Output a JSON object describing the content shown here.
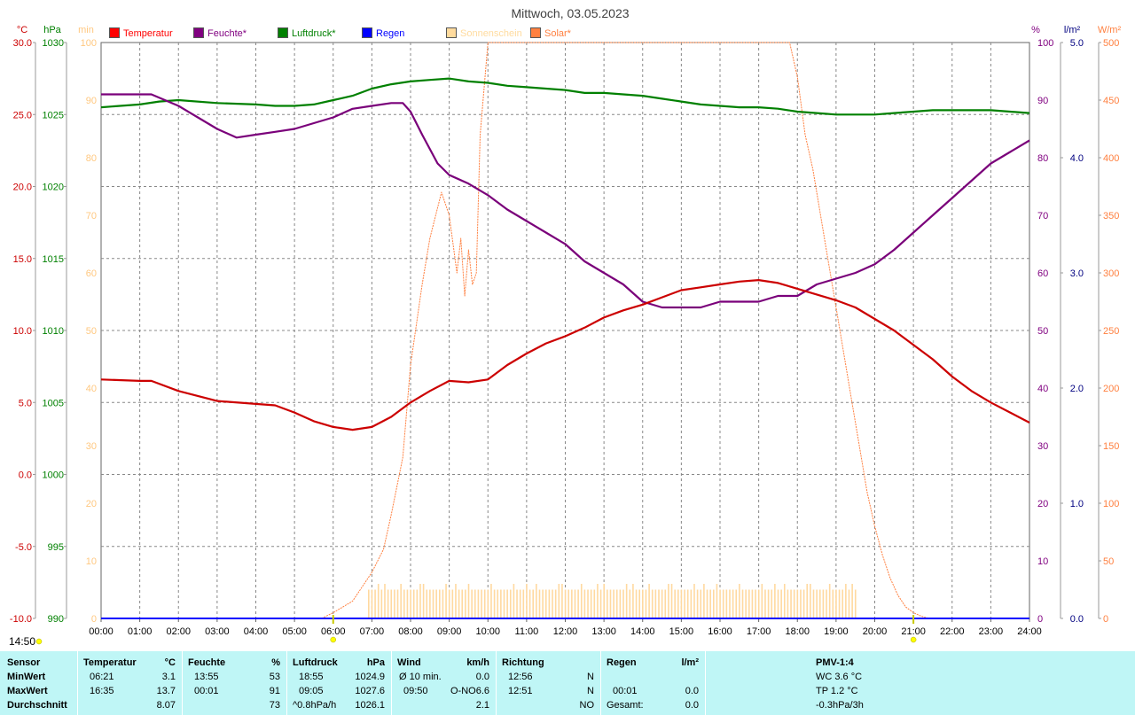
{
  "title": "Mittwoch, 03.05.2023",
  "time_label": "14:50",
  "axis_units": {
    "temp": "°C",
    "pressure": "hPa",
    "minutes": "min",
    "percent": "%",
    "rain": "l/m²",
    "solar": "W/m²"
  },
  "legend": [
    {
      "label": "Temperatur",
      "color": "#ff0000"
    },
    {
      "label": "Feuchte*",
      "color": "#800080"
    },
    {
      "label": "Luftdruck*",
      "color": "#008000"
    },
    {
      "label": "Regen",
      "color": "#0000ff"
    },
    {
      "label": "Sonnenschein",
      "color": "#ffdb9e"
    },
    {
      "label": "Solar*",
      "color": "#ff8040"
    }
  ],
  "colors": {
    "temp": "#cc0000",
    "humidity": "#7a007a",
    "pressure": "#008000",
    "rain": "#0000ff",
    "sunshine": "#ffd9a0",
    "solar": "#ff8040",
    "grid": "#888888",
    "axis_temp": "#cc0000",
    "axis_pressure": "#008000",
    "axis_minutes": "#ffc880",
    "axis_percent": "#800080",
    "axis_rain": "#000080",
    "axis_solar": "#ff8040",
    "summary_bg": "#bff6f6"
  },
  "chart_data": {
    "type": "line",
    "x_range_hours": [
      0,
      24
    ],
    "x_ticks": [
      "00:00",
      "01:00",
      "02:00",
      "03:00",
      "04:00",
      "05:00",
      "06:00",
      "07:00",
      "08:00",
      "09:00",
      "10:00",
      "11:00",
      "12:00",
      "13:00",
      "14:00",
      "15:00",
      "16:00",
      "17:00",
      "18:00",
      "19:00",
      "20:00",
      "21:00",
      "22:00",
      "23:00",
      "24:00"
    ],
    "y_axes": {
      "temp": {
        "range": [
          -10,
          30
        ],
        "ticks": [
          "30.0",
          "25.0",
          "20.0",
          "15.0",
          "10.0",
          "5.0",
          "0.0",
          "-5.0",
          "-10.0"
        ]
      },
      "pressure": {
        "range": [
          990,
          1030
        ],
        "ticks": [
          "1030",
          "1025",
          "1020",
          "1015",
          "1010",
          "1005",
          "1000",
          "995",
          "990"
        ]
      },
      "minutes": {
        "range": [
          0,
          100
        ],
        "ticks": [
          "100",
          "90",
          "80",
          "70",
          "60",
          "50",
          "40",
          "30",
          "20",
          "10",
          "0"
        ]
      },
      "percent": {
        "range": [
          0,
          100
        ],
        "ticks": [
          "100",
          "90",
          "80",
          "70",
          "60",
          "50",
          "40",
          "30",
          "20",
          "10",
          "0"
        ]
      },
      "rain": {
        "range": [
          0,
          5
        ],
        "ticks": [
          "5.0",
          "4.0",
          "3.0",
          "2.0",
          "1.0",
          "0.0"
        ]
      },
      "solar": {
        "range": [
          0,
          500
        ],
        "ticks": [
          "500",
          "450",
          "400",
          "350",
          "300",
          "250",
          "200",
          "150",
          "100",
          "50",
          "0"
        ]
      }
    },
    "grid": true,
    "series": [
      {
        "name": "Temperatur",
        "axis": "temp",
        "x": [
          0,
          1,
          1.3,
          2,
          3,
          4,
          4.5,
          5,
          5.5,
          6,
          6.5,
          7,
          7.5,
          8,
          8.5,
          9,
          9.5,
          10,
          10.5,
          11,
          11.5,
          12,
          12.5,
          13,
          13.5,
          14,
          14.5,
          15,
          15.5,
          16,
          16.5,
          17,
          17.5,
          18,
          18.5,
          19,
          19.5,
          20,
          20.5,
          21,
          21.5,
          22,
          22.5,
          23,
          23.5,
          24
        ],
        "y": [
          6.6,
          6.5,
          6.5,
          5.8,
          5.1,
          4.9,
          4.8,
          4.3,
          3.7,
          3.3,
          3.1,
          3.3,
          4.0,
          5.0,
          5.8,
          6.5,
          6.4,
          6.6,
          7.6,
          8.4,
          9.1,
          9.6,
          10.2,
          10.9,
          11.4,
          11.8,
          12.3,
          12.8,
          13.0,
          13.2,
          13.4,
          13.5,
          13.3,
          12.9,
          12.5,
          12.1,
          11.6,
          10.8,
          10.0,
          9.0,
          8.0,
          6.8,
          5.8,
          5.0,
          4.3,
          3.6
        ]
      },
      {
        "name": "Feuchte*",
        "axis": "percent",
        "x": [
          0,
          1.3,
          2,
          2.5,
          3,
          3.5,
          4,
          4.5,
          5,
          5.5,
          6,
          6.5,
          7,
          7.5,
          7.8,
          8,
          8.3,
          8.7,
          9,
          9.5,
          10,
          10.5,
          11,
          11.5,
          12,
          12.5,
          13,
          13.5,
          14,
          14.5,
          15,
          15.5,
          16,
          16.5,
          17,
          17.5,
          18,
          18.5,
          19,
          19.5,
          20,
          20.5,
          21,
          21.5,
          22,
          22.5,
          23,
          23.5,
          24
        ],
        "y": [
          91,
          91,
          89,
          87,
          85,
          83.5,
          84,
          84.5,
          85,
          86,
          87,
          88.5,
          89,
          89.5,
          89.5,
          88,
          84,
          79,
          77,
          75.5,
          73.5,
          71,
          69,
          67,
          65,
          62,
          60,
          58,
          55,
          54,
          54,
          54,
          55,
          55,
          55,
          56,
          56,
          58,
          59,
          60,
          61.5,
          64,
          67,
          70,
          73,
          76,
          79,
          81,
          83
        ]
      },
      {
        "name": "Luftdruck*",
        "axis": "pressure",
        "x": [
          0,
          1,
          1.5,
          2,
          3,
          4,
          4.5,
          5,
          5.5,
          6,
          6.5,
          7,
          7.5,
          8,
          8.5,
          9,
          9.5,
          10,
          10.5,
          11,
          11.5,
          12,
          12.5,
          13,
          13.5,
          14,
          14.5,
          15,
          15.5,
          16,
          16.5,
          17,
          17.5,
          18,
          18.5,
          19,
          19.5,
          20,
          20.5,
          21,
          21.5,
          22,
          22.5,
          23,
          23.5,
          24
        ],
        "y": [
          1025.5,
          1025.7,
          1025.9,
          1026.0,
          1025.8,
          1025.7,
          1025.6,
          1025.6,
          1025.7,
          1026.0,
          1026.3,
          1026.8,
          1027.1,
          1027.3,
          1027.4,
          1027.5,
          1027.3,
          1027.2,
          1027.0,
          1026.9,
          1026.8,
          1026.7,
          1026.5,
          1026.5,
          1026.4,
          1026.3,
          1026.1,
          1025.9,
          1025.7,
          1025.6,
          1025.5,
          1025.5,
          1025.4,
          1025.2,
          1025.1,
          1025.0,
          1025.0,
          1025.0,
          1025.1,
          1025.2,
          1025.3,
          1025.3,
          1025.3,
          1025.3,
          1025.2,
          1025.1
        ]
      },
      {
        "name": "Regen",
        "axis": "rain",
        "x": [
          0,
          24
        ],
        "y": [
          0,
          0
        ]
      },
      {
        "name": "Solar*",
        "axis": "solar",
        "x": [
          5.7,
          6,
          6.5,
          7,
          7.3,
          7.5,
          7.8,
          8,
          8.3,
          8.5,
          8.8,
          9,
          9.2,
          9.3,
          9.4,
          9.5,
          9.6,
          9.7,
          9.8,
          10,
          10.1,
          10.3,
          10.6,
          17.6,
          17.8,
          18,
          18.2,
          18.4,
          18.6,
          18.8,
          19,
          19.2,
          19.4,
          19.6,
          19.8,
          20,
          20.2,
          20.4,
          20.6,
          20.8,
          21,
          21.2,
          21.4
        ],
        "y": [
          0,
          5,
          15,
          40,
          60,
          90,
          140,
          220,
          290,
          330,
          370,
          350,
          300,
          330,
          280,
          320,
          290,
          300,
          420,
          500,
          560,
          620,
          680,
          680,
          560,
          470,
          420,
          390,
          350,
          310,
          270,
          230,
          190,
          150,
          110,
          80,
          55,
          35,
          20,
          10,
          5,
          2,
          0
        ]
      },
      {
        "name": "Sonnenschein",
        "axis": "minutes",
        "type": "bar",
        "x_start": 6.9,
        "x_end": 19.55,
        "typical_value": 5,
        "max_value": 6
      }
    ]
  },
  "markers": {
    "sunrise": "06:00",
    "sunset": "21:00"
  },
  "summary": {
    "row_labels": [
      "Sensor",
      "MinWert",
      "MaxWert",
      "Durchschnitt"
    ],
    "temperature": {
      "header": "Temperatur",
      "unit": "°C",
      "min_time": "06:21",
      "min": "3.1",
      "max_time": "16:35",
      "max": "13.7",
      "avg": "8.07"
    },
    "humidity": {
      "header": "Feuchte",
      "unit": "%",
      "min_time": "13:55",
      "min": "53",
      "max_time": "00:01",
      "max": "91",
      "avg": "73"
    },
    "pressure": {
      "header": "Luftdruck",
      "unit": "hPa",
      "min_time": "18:55",
      "min": "1024.9",
      "max_time": "09:05",
      "max": "1027.6",
      "avg_label": "^0.8hPa/h",
      "avg": "1026.1"
    },
    "wind": {
      "header": "Wind",
      "unit": "km/h",
      "min_label": "Ø 10 min.",
      "min": "0.0",
      "max_time": "09:50",
      "max_dir": "O-NO",
      "max": "6.6",
      "avg": "2.1"
    },
    "direction": {
      "header": "Richtung",
      "min_time": "12:56",
      "min": "N",
      "max_time": "12:51",
      "max": "N",
      "avg": "NO"
    },
    "rain": {
      "header": "Regen",
      "unit": "l/m²",
      "max_time": "00:01",
      "max": "0.0",
      "total_label": "Gesamt:",
      "total": "0.0"
    },
    "pmv": {
      "header": "PMV-1:4",
      "wc": "WC 3.6 °C",
      "tp": "TP 1.2 °C",
      "trend": "-0.3hPa/3h"
    }
  }
}
